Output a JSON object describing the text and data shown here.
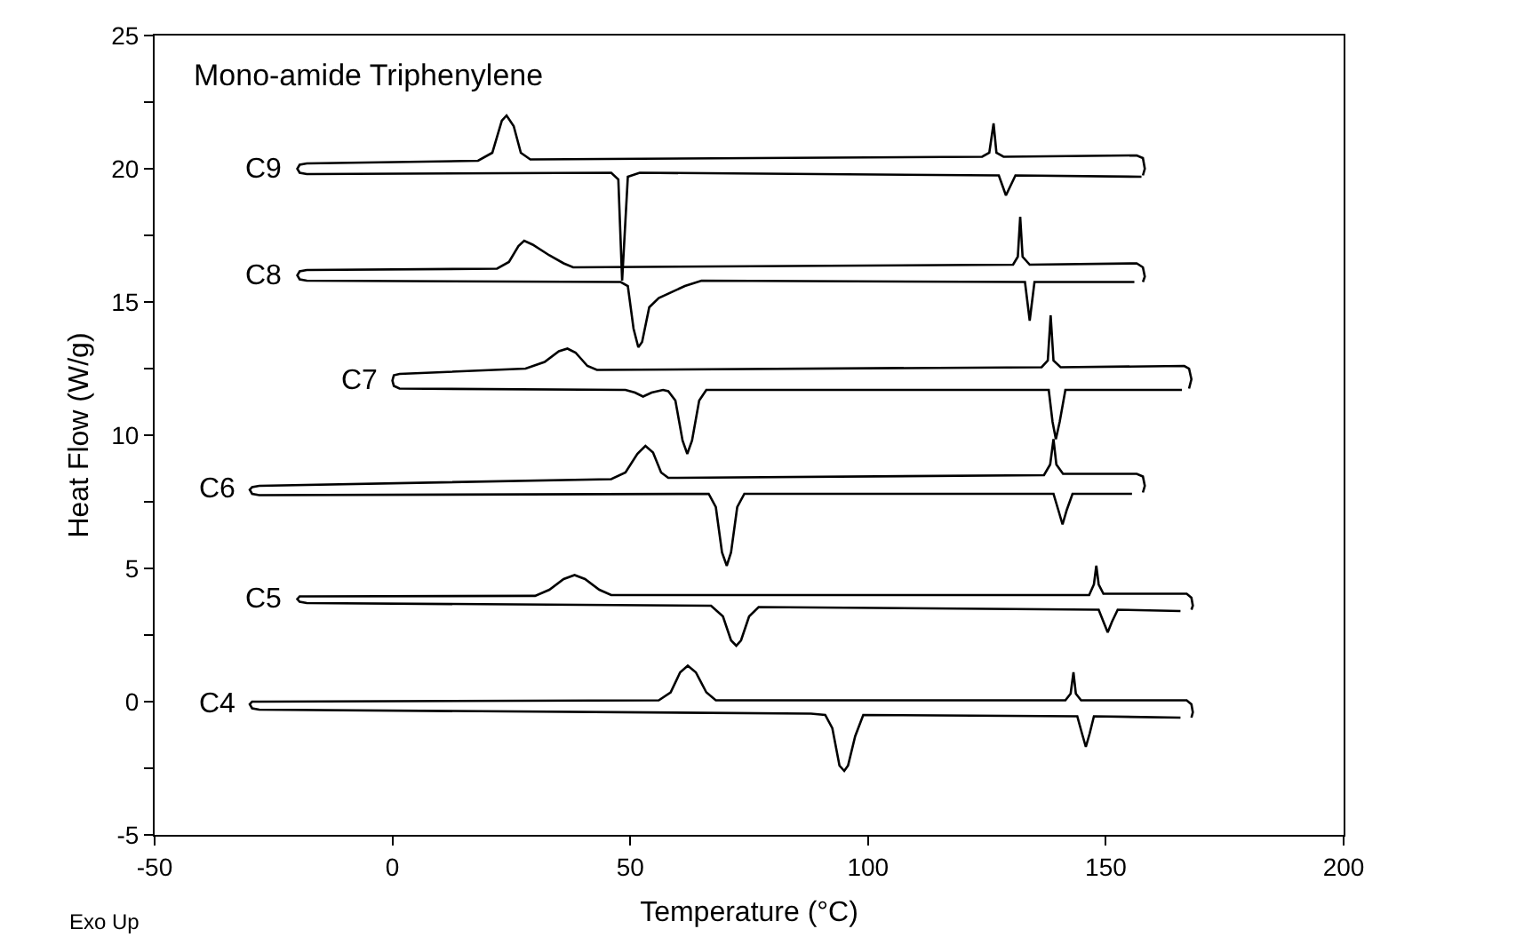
{
  "chart_data": {
    "type": "line",
    "title": "Mono-amide Triphenylene",
    "xlabel": "Temperature (°C)",
    "ylabel": "Heat Flow (W/g)",
    "xlim": [
      -50,
      200
    ],
    "xticks": [
      -50,
      0,
      50,
      100,
      150,
      200
    ],
    "ylim": [
      -5,
      25
    ],
    "yticks": [
      -5,
      {
        "value": -2.5,
        "label": null
      },
      0,
      {
        "value": 2.5,
        "label": null
      },
      5,
      {
        "value": 7.5,
        "label": null
      },
      10,
      {
        "value": 12.5,
        "label": null
      },
      15,
      {
        "value": 17.5,
        "label": null
      },
      20,
      {
        "value": 22.5,
        "label": null
      },
      25
    ],
    "legend": false,
    "marker": "none",
    "line_style": "solid",
    "annotations": [
      "Exo Up"
    ],
    "series": [
      {
        "name": "C9",
        "color": "#000000",
        "x": [
          157.5,
          131,
          129,
          127.5,
          52,
          49.5,
          48.3,
          47.5,
          46,
          -18,
          -19.5,
          -20,
          -19.5,
          -18,
          18,
          21,
          23,
          24,
          25.5,
          27,
          29,
          124,
          125.5,
          126.4,
          127,
          128.5,
          156.5,
          157.8,
          158.2,
          157.8
        ],
        "values": [
          19.7,
          19.75,
          19.0,
          19.75,
          19.85,
          19.7,
          15.8,
          19.6,
          19.85,
          19.8,
          19.85,
          20.0,
          20.15,
          20.2,
          20.3,
          20.6,
          21.8,
          22.0,
          21.6,
          20.6,
          20.35,
          20.45,
          20.6,
          21.7,
          20.6,
          20.45,
          20.5,
          20.4,
          20.0,
          19.75
        ]
      },
      {
        "name": "C8",
        "color": "#000000",
        "x": [
          156,
          135,
          134,
          133,
          65,
          61.5,
          56,
          54,
          52.5,
          51.7,
          50.7,
          49.5,
          48,
          -18,
          -19.5,
          -20,
          -19.5,
          -18,
          22,
          24.5,
          26.5,
          27.7,
          29.5,
          33,
          36,
          38,
          130.5,
          131.5,
          132,
          132.5,
          134,
          156.5,
          157.8,
          158.2,
          157.8
        ],
        "values": [
          15.75,
          15.75,
          14.3,
          15.75,
          15.8,
          15.6,
          15.15,
          14.8,
          13.5,
          13.3,
          14.0,
          15.6,
          15.75,
          15.8,
          15.85,
          16.0,
          16.15,
          16.2,
          16.25,
          16.5,
          17.1,
          17.3,
          17.15,
          16.75,
          16.45,
          16.3,
          16.4,
          16.7,
          18.2,
          16.7,
          16.4,
          16.45,
          16.3,
          15.95,
          15.75
        ]
      },
      {
        "name": "C7",
        "color": "#000000",
        "x": [
          166,
          141.5,
          140.3,
          139.5,
          138.8,
          138,
          66,
          64.5,
          63,
          62,
          61,
          59.5,
          58,
          56.9,
          54.5,
          52.7,
          51,
          49,
          1.5,
          0.3,
          0,
          0.3,
          1.5,
          28,
          32,
          35,
          36.8,
          38.5,
          41,
          43,
          136.5,
          137.8,
          138.4,
          139,
          140.5,
          166.5,
          167.5,
          168,
          167.5
        ],
        "values": [
          11.7,
          11.7,
          10.5,
          9.85,
          10.5,
          11.7,
          11.7,
          11.3,
          9.8,
          9.3,
          9.8,
          11.3,
          11.65,
          11.7,
          11.6,
          11.45,
          11.6,
          11.7,
          11.75,
          11.85,
          12.05,
          12.25,
          12.3,
          12.5,
          12.75,
          13.15,
          13.25,
          13.1,
          12.6,
          12.45,
          12.55,
          12.8,
          14.5,
          12.8,
          12.55,
          12.6,
          12.5,
          12.1,
          11.75
        ]
      },
      {
        "name": "C6",
        "color": "#000000",
        "x": [
          155.5,
          143,
          141.8,
          140.9,
          140,
          139,
          74,
          72.5,
          71.2,
          70.3,
          69.3,
          68,
          66.5,
          -28,
          -29.5,
          -30,
          -29.5,
          -28,
          46,
          49,
          51.5,
          53.2,
          54.8,
          56.5,
          58,
          137,
          138.3,
          139,
          139.6,
          141,
          156.5,
          157.8,
          158.2,
          157.8
        ],
        "values": [
          7.8,
          7.8,
          7.2,
          6.65,
          7.2,
          7.8,
          7.8,
          7.3,
          5.6,
          5.1,
          5.6,
          7.3,
          7.8,
          7.75,
          7.8,
          7.95,
          8.05,
          8.1,
          8.35,
          8.6,
          9.3,
          9.6,
          9.35,
          8.6,
          8.4,
          8.5,
          8.9,
          9.85,
          8.9,
          8.55,
          8.55,
          8.45,
          8.1,
          7.85
        ]
      },
      {
        "name": "C5",
        "color": "#000000",
        "x": [
          165.7,
          152.5,
          151.3,
          150.4,
          149.5,
          148.5,
          77,
          75,
          73.3,
          72.3,
          71.2,
          69.5,
          67,
          -18,
          -19.5,
          -20,
          -19.5,
          -18,
          30,
          33,
          36,
          38.3,
          40.5,
          43.5,
          46,
          146.5,
          147.5,
          148,
          148.5,
          149.5,
          167,
          168,
          168.3,
          168
        ],
        "values": [
          3.4,
          3.45,
          3.0,
          2.6,
          3.0,
          3.45,
          3.55,
          3.2,
          2.3,
          2.1,
          2.3,
          3.2,
          3.6,
          3.7,
          3.75,
          3.85,
          3.95,
          3.95,
          3.97,
          4.2,
          4.6,
          4.75,
          4.6,
          4.2,
          4.0,
          4.0,
          4.4,
          5.1,
          4.4,
          4.05,
          4.05,
          3.9,
          3.6,
          3.45
        ]
      },
      {
        "name": "C4",
        "color": "#000000",
        "x": [
          165.7,
          147.5,
          146.6,
          145.8,
          145,
          144,
          99,
          97.3,
          95.8,
          95,
          94,
          92.5,
          91,
          88,
          -28,
          -29.5,
          -30,
          -29.5,
          -28,
          56,
          58.5,
          60.5,
          62.1,
          63.8,
          66,
          68,
          141.5,
          142.6,
          143.2,
          143.7,
          144.8,
          167,
          168,
          168.3,
          168
        ],
        "values": [
          -0.6,
          -0.55,
          -1.2,
          -1.7,
          -1.2,
          -0.55,
          -0.5,
          -1.3,
          -2.4,
          -2.6,
          -2.4,
          -1.0,
          -0.5,
          -0.45,
          -0.3,
          -0.25,
          -0.1,
          0.0,
          0.0,
          0.05,
          0.35,
          1.1,
          1.35,
          1.1,
          0.35,
          0.05,
          0.05,
          0.3,
          1.1,
          0.3,
          0.05,
          0.05,
          -0.1,
          -0.4,
          -0.6
        ]
      }
    ]
  }
}
